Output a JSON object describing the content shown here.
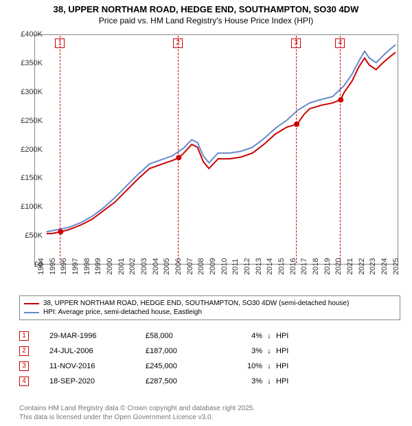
{
  "title": "38, UPPER NORTHAM ROAD, HEDGE END, SOUTHAMPTON, SO30 4DW",
  "subtitle": "Price paid vs. HM Land Registry's House Price Index (HPI)",
  "chart": {
    "type": "line",
    "background_color": "#ffffff",
    "border_color": "#888888",
    "x": {
      "min": 1994,
      "max": 2025.8,
      "ticks": [
        1994,
        1995,
        1996,
        1997,
        1998,
        1999,
        2000,
        2001,
        2002,
        2003,
        2004,
        2005,
        2006,
        2007,
        2008,
        2009,
        2010,
        2011,
        2012,
        2013,
        2014,
        2015,
        2016,
        2017,
        2018,
        2019,
        2020,
        2021,
        2022,
        2023,
        2024,
        2025
      ]
    },
    "y": {
      "min": 0,
      "max": 400000,
      "ticks": [
        0,
        50000,
        100000,
        150000,
        200000,
        250000,
        300000,
        350000,
        400000
      ],
      "tick_labels": [
        "£0",
        "£50K",
        "£100K",
        "£150K",
        "£200K",
        "£250K",
        "£300K",
        "£350K",
        "£400K"
      ]
    },
    "series": [
      {
        "name": "price_paid",
        "label": "38, UPPER NORTHAM ROAD, HEDGE END, SOUTHAMPTON, SO30 4DW (semi-detached house)",
        "color": "#cc0000",
        "line_width": 2,
        "points": [
          [
            1995.0,
            55000
          ],
          [
            1995.5,
            55000
          ],
          [
            1996.2,
            58000
          ],
          [
            1997.0,
            62000
          ],
          [
            1998.0,
            70000
          ],
          [
            1999.0,
            80000
          ],
          [
            2000.0,
            95000
          ],
          [
            2001.0,
            110000
          ],
          [
            2002.0,
            130000
          ],
          [
            2003.0,
            150000
          ],
          [
            2004.0,
            168000
          ],
          [
            2005.0,
            175000
          ],
          [
            2006.0,
            182000
          ],
          [
            2006.6,
            187000
          ],
          [
            2007.0,
            195000
          ],
          [
            2007.7,
            210000
          ],
          [
            2008.2,
            205000
          ],
          [
            2008.7,
            180000
          ],
          [
            2009.2,
            168000
          ],
          [
            2010.0,
            185000
          ],
          [
            2011.0,
            185000
          ],
          [
            2012.0,
            188000
          ],
          [
            2013.0,
            195000
          ],
          [
            2014.0,
            210000
          ],
          [
            2015.0,
            228000
          ],
          [
            2016.0,
            240000
          ],
          [
            2016.9,
            245000
          ],
          [
            2017.5,
            262000
          ],
          [
            2018.0,
            272000
          ],
          [
            2019.0,
            278000
          ],
          [
            2020.0,
            282000
          ],
          [
            2020.7,
            287500
          ],
          [
            2021.0,
            300000
          ],
          [
            2021.7,
            320000
          ],
          [
            2022.3,
            345000
          ],
          [
            2022.8,
            360000
          ],
          [
            2023.2,
            348000
          ],
          [
            2023.8,
            340000
          ],
          [
            2024.3,
            350000
          ],
          [
            2025.0,
            362000
          ],
          [
            2025.5,
            370000
          ]
        ]
      },
      {
        "name": "hpi",
        "label": "HPI: Average price, semi-detached house, Eastleigh",
        "color": "#6688cc",
        "line_width": 2,
        "points": [
          [
            1995.0,
            58000
          ],
          [
            1996.0,
            62000
          ],
          [
            1997.0,
            66000
          ],
          [
            1998.0,
            74000
          ],
          [
            1999.0,
            85000
          ],
          [
            2000.0,
            100000
          ],
          [
            2001.0,
            118000
          ],
          [
            2002.0,
            138000
          ],
          [
            2003.0,
            158000
          ],
          [
            2004.0,
            176000
          ],
          [
            2005.0,
            183000
          ],
          [
            2006.0,
            190000
          ],
          [
            2007.0,
            204000
          ],
          [
            2007.7,
            218000
          ],
          [
            2008.2,
            213000
          ],
          [
            2008.7,
            190000
          ],
          [
            2009.2,
            178000
          ],
          [
            2010.0,
            195000
          ],
          [
            2011.0,
            195000
          ],
          [
            2012.0,
            198000
          ],
          [
            2013.0,
            205000
          ],
          [
            2014.0,
            220000
          ],
          [
            2015.0,
            238000
          ],
          [
            2016.0,
            252000
          ],
          [
            2017.0,
            270000
          ],
          [
            2018.0,
            282000
          ],
          [
            2019.0,
            288000
          ],
          [
            2020.0,
            293000
          ],
          [
            2021.0,
            312000
          ],
          [
            2021.7,
            332000
          ],
          [
            2022.3,
            355000
          ],
          [
            2022.8,
            372000
          ],
          [
            2023.2,
            360000
          ],
          [
            2023.8,
            352000
          ],
          [
            2024.3,
            362000
          ],
          [
            2025.0,
            375000
          ],
          [
            2025.5,
            383000
          ]
        ]
      }
    ],
    "markers": [
      {
        "n": "1",
        "x": 1996.24,
        "y": 58000
      },
      {
        "n": "2",
        "x": 2006.56,
        "y": 187000
      },
      {
        "n": "3",
        "x": 2016.86,
        "y": 245000
      },
      {
        "n": "4",
        "x": 2020.72,
        "y": 287500
      }
    ]
  },
  "legend": {
    "items": [
      {
        "color": "#cc0000",
        "label": "38, UPPER NORTHAM ROAD, HEDGE END, SOUTHAMPTON, SO30 4DW (semi-detached house)"
      },
      {
        "color": "#6688cc",
        "label": "HPI: Average price, semi-detached house, Eastleigh"
      }
    ]
  },
  "sales": [
    {
      "n": "1",
      "date": "29-MAR-1996",
      "price": "£58,000",
      "pct": "4%",
      "dir": "↓",
      "suffix": "HPI"
    },
    {
      "n": "2",
      "date": "24-JUL-2006",
      "price": "£187,000",
      "pct": "3%",
      "dir": "↓",
      "suffix": "HPI"
    },
    {
      "n": "3",
      "date": "11-NOV-2016",
      "price": "£245,000",
      "pct": "10%",
      "dir": "↓",
      "suffix": "HPI"
    },
    {
      "n": "4",
      "date": "18-SEP-2020",
      "price": "£287,500",
      "pct": "3%",
      "dir": "↓",
      "suffix": "HPI"
    }
  ],
  "footer": {
    "line1": "Contains HM Land Registry data © Crown copyright and database right 2025.",
    "line2": "This data is licensed under the Open Government Licence v3.0."
  }
}
